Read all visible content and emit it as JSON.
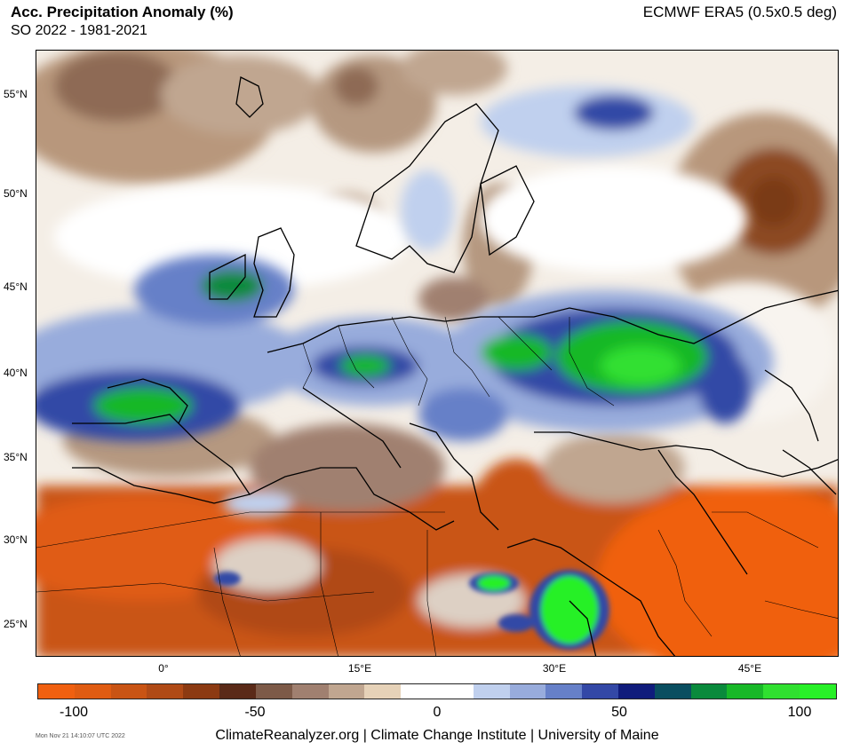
{
  "header": {
    "title": "Acc. Precipitation Anomaly (%)",
    "subtitle": "SO 2022 - 1981-2021",
    "source": "ECMWF ERA5 (0.5x0.5 deg)"
  },
  "map": {
    "lat_labels": [
      "55°N",
      "50°N",
      "45°N",
      "40°N",
      "35°N",
      "30°N",
      "25°N"
    ],
    "lon_labels": [
      "0°",
      "15°E",
      "30°E",
      "45°E"
    ]
  },
  "colorbar": {
    "ticks": [
      "-100",
      "-50",
      "0",
      "50",
      "100"
    ],
    "colors": [
      "#f06010",
      "#e05c12",
      "#c95414",
      "#b04a16",
      "#8c3a12",
      "#5a2a18",
      "#7d5a48",
      "#a08070",
      "#c0a690",
      "#e6d2b8",
      "#ffffff",
      "#ffffff",
      "#c0d0ee",
      "#98acdc",
      "#6680c8",
      "#3348a6",
      "#101c7c",
      "#0a4e60",
      "#0a8a3c",
      "#18b828",
      "#30e030",
      "#28f028"
    ]
  },
  "footer": {
    "timestamp": "Mon Nov 21 14:10:07 UTC 2022",
    "credit": "ClimateReanalyzer.org | Climate Change Institute | University of Maine"
  }
}
